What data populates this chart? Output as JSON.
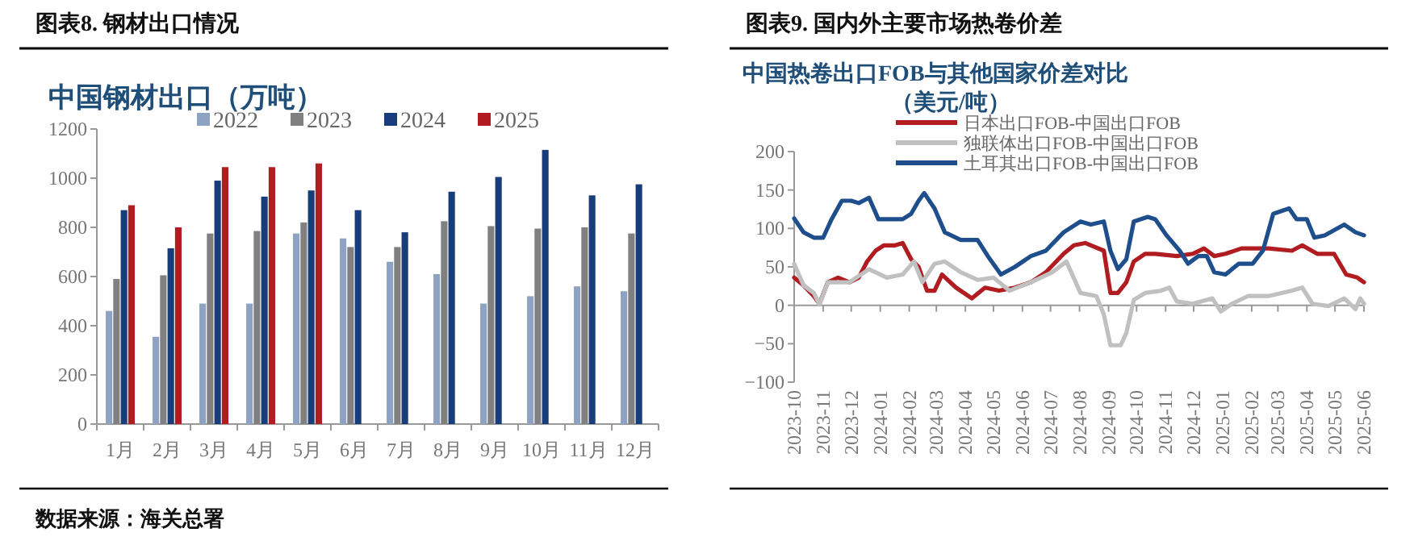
{
  "chart_data": [
    {
      "type": "bar",
      "title": "图表8. 钢材出口情况",
      "subtitle": "中国钢材出口（万吨）",
      "categories": [
        "1月",
        "2月",
        "3月",
        "4月",
        "5月",
        "6月",
        "7月",
        "8月",
        "9月",
        "10月",
        "11月",
        "12月"
      ],
      "series": [
        {
          "name": "2022",
          "color": "#8ea3c3",
          "values": [
            460,
            355,
            490,
            490,
            775,
            755,
            660,
            610,
            490,
            520,
            560,
            540
          ]
        },
        {
          "name": "2023",
          "color": "#808080",
          "values": [
            590,
            605,
            775,
            785,
            820,
            720,
            720,
            825,
            805,
            795,
            800,
            775
          ]
        },
        {
          "name": "2024",
          "color": "#173d7a",
          "values": [
            870,
            715,
            990,
            925,
            950,
            870,
            780,
            945,
            1005,
            1115,
            930,
            975
          ]
        },
        {
          "name": "2025",
          "color": "#b01c20",
          "values": [
            890,
            800,
            1045,
            1045,
            1060,
            null,
            null,
            null,
            null,
            null,
            null,
            null
          ]
        }
      ],
      "ylim": [
        0,
        1200
      ],
      "yticks": [
        0,
        200,
        400,
        600,
        800,
        1000,
        1200
      ],
      "legend": "top",
      "annotations": [
        "数据来源：海关总署"
      ]
    },
    {
      "type": "line",
      "title": "图表9. 国内外主要市场热卷价差",
      "subtitle": "中国热卷出口FOB与其他国家价差对比",
      "ylabel": "（美元/吨）",
      "series": [
        {
          "name": "日本出口FOB-中国出口FOB",
          "color": "#b01c20",
          "x": [
            "2023-10-01",
            "2023-10-11",
            "2023-10-22",
            "2023-10-28",
            "2023-11-06",
            "2023-11-17",
            "2023-11-29",
            "2023-12-09",
            "2023-12-18",
            "2023-12-27",
            "2024-01-05",
            "2024-01-17",
            "2024-01-25",
            "2024-02-03",
            "2024-02-11",
            "2024-02-20",
            "2024-02-28",
            "2024-03-07",
            "2024-03-22",
            "2024-04-08",
            "2024-04-22",
            "2024-05-07",
            "2024-05-24",
            "2024-06-10",
            "2024-06-26",
            "2024-07-15",
            "2024-07-26",
            "2024-08-07",
            "2024-08-27",
            "2024-09-03",
            "2024-09-11",
            "2024-09-20",
            "2024-09-28",
            "2024-10-10",
            "2024-10-21",
            "2024-11-13",
            "2024-11-30",
            "2024-12-12",
            "2024-12-23",
            "2025-01-04",
            "2025-01-21",
            "2025-02-19",
            "2025-03-16",
            "2025-03-27",
            "2025-04-12",
            "2025-04-30",
            "2025-05-13",
            "2025-05-25",
            "2025-06-01"
          ],
          "values": [
            36,
            26,
            12,
            2,
            30,
            36,
            30,
            36,
            57,
            71,
            78,
            78,
            81,
            60,
            50,
            19,
            19,
            40,
            23,
            9,
            23,
            19,
            23,
            30,
            43,
            67,
            78,
            81,
            71,
            16,
            16,
            30,
            57,
            67,
            67,
            64,
            67,
            74,
            64,
            67,
            74,
            74,
            71,
            78,
            67,
            67,
            40,
            36,
            30
          ]
        },
        {
          "name": "独联体出口FOB-中国出口FOB",
          "color": "#c0c0c0",
          "x": [
            "2023-10-01",
            "2023-10-11",
            "2023-10-22",
            "2023-10-28",
            "2023-11-06",
            "2023-11-29",
            "2023-12-20",
            "2024-01-08",
            "2024-01-25",
            "2024-02-06",
            "2024-02-15",
            "2024-02-28",
            "2024-03-10",
            "2024-03-27",
            "2024-04-14",
            "2024-05-01",
            "2024-05-18",
            "2024-06-10",
            "2024-07-03",
            "2024-07-18",
            "2024-08-02",
            "2024-08-19",
            "2024-08-27",
            "2024-09-03",
            "2024-09-14",
            "2024-09-20",
            "2024-09-28",
            "2024-10-10",
            "2024-10-27",
            "2024-11-05",
            "2024-11-13",
            "2024-11-30",
            "2024-12-21",
            "2024-12-30",
            "2025-01-11",
            "2025-01-28",
            "2025-02-19",
            "2025-03-16",
            "2025-03-27",
            "2025-04-07",
            "2025-04-24",
            "2025-05-11",
            "2025-05-23",
            "2025-05-28",
            "2025-06-01"
          ],
          "values": [
            54,
            26,
            16,
            1,
            30,
            30,
            47,
            36,
            40,
            57,
            30,
            54,
            57,
            43,
            33,
            36,
            19,
            30,
            43,
            57,
            16,
            12,
            -12,
            -52,
            -52,
            -36,
            7,
            16,
            19,
            23,
            5,
            2,
            9,
            -8,
            2,
            12,
            12,
            19,
            23,
            2,
            -1,
            9,
            -5,
            9,
            2
          ]
        },
        {
          "name": "土耳其出口FOB-中国出口FOB",
          "color": "#1f4e8c",
          "x": [
            "2023-10-01",
            "2023-10-11",
            "2023-10-22",
            "2023-11-01",
            "2023-11-10",
            "2023-11-21",
            "2023-12-01",
            "2023-12-09",
            "2023-12-20",
            "2023-12-30",
            "2024-01-08",
            "2024-01-25",
            "2024-02-03",
            "2024-02-11",
            "2024-02-17",
            "2024-02-28",
            "2024-03-10",
            "2024-03-27",
            "2024-04-14",
            "2024-04-25",
            "2024-05-09",
            "2024-05-24",
            "2024-06-10",
            "2024-06-26",
            "2024-07-15",
            "2024-08-02",
            "2024-08-13",
            "2024-08-27",
            "2024-09-03",
            "2024-09-11",
            "2024-09-20",
            "2024-09-28",
            "2024-10-13",
            "2024-10-21",
            "2024-11-02",
            "2024-11-16",
            "2024-11-25",
            "2024-12-06",
            "2024-12-15",
            "2024-12-23",
            "2025-01-04",
            "2025-01-18",
            "2025-02-02",
            "2025-02-13",
            "2025-02-24",
            "2025-03-13",
            "2025-03-21",
            "2025-04-01",
            "2025-04-09",
            "2025-04-20",
            "2025-05-11",
            "2025-05-23",
            "2025-06-01"
          ],
          "values": [
            113,
            95,
            88,
            88,
            112,
            136,
            136,
            133,
            140,
            112,
            112,
            112,
            119,
            136,
            146,
            126,
            95,
            85,
            85,
            64,
            40,
            50,
            64,
            71,
            95,
            109,
            105,
            109,
            71,
            47,
            60,
            109,
            115,
            112,
            91,
            71,
            54,
            64,
            64,
            43,
            40,
            54,
            54,
            71,
            119,
            126,
            112,
            112,
            88,
            91,
            105,
            95,
            91
          ]
        }
      ],
      "xlim": [
        "2023-10-01",
        "2025-06-01"
      ],
      "xticks": [
        "2023-10",
        "2023-11",
        "2023-12",
        "2024-01",
        "2024-02",
        "2024-03",
        "2024-04",
        "2024-05",
        "2024-06",
        "2024-07",
        "2024-08",
        "2024-09",
        "2024-10",
        "2024-11",
        "2024-12",
        "2025-01",
        "2025-02",
        "2025-03",
        "2025-04",
        "2025-05",
        "2025-06"
      ],
      "ylim": [
        -100,
        200
      ],
      "yticks": [
        -100,
        -50,
        0,
        50,
        100,
        150,
        200
      ],
      "legend": "top"
    }
  ]
}
